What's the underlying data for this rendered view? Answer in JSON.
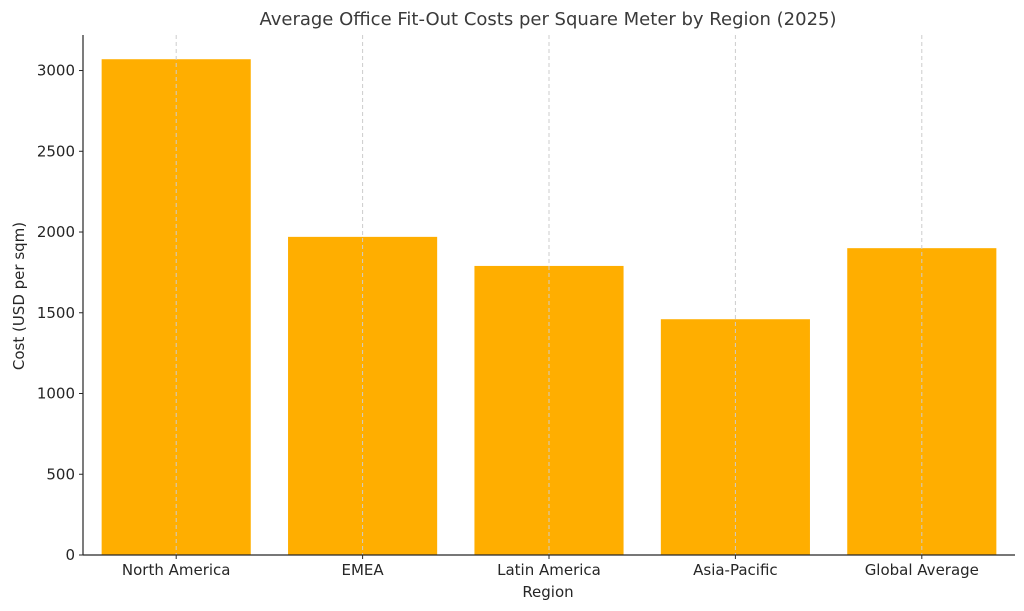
{
  "chart_data": {
    "type": "bar",
    "title": "Average Office Fit-Out Costs per Square Meter by Region (2025)",
    "xlabel": "Region",
    "ylabel": "Cost (USD per sqm)",
    "categories": [
      "North America",
      "EMEA",
      "Latin America",
      "Asia-Pacific",
      "Global Average"
    ],
    "values": [
      3070,
      1970,
      1790,
      1460,
      1900
    ],
    "ylim": [
      0,
      3220
    ],
    "yticks": [
      0,
      500,
      1000,
      1500,
      2000,
      2500,
      3000
    ],
    "grid": "vertical dashed at category centers",
    "bar_color": "#FFAE00",
    "legend": "none"
  }
}
